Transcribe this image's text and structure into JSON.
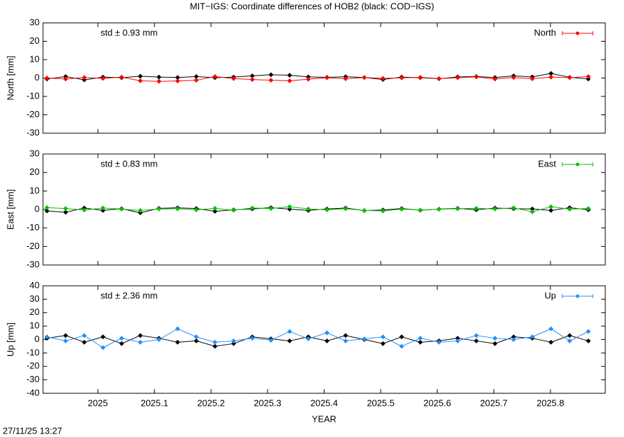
{
  "title": "MIT−IGS: Coordinate differences of HOB2 (black: COD−IGS)",
  "timestamp": "27/11/25 13:27",
  "chart_data": [
    {
      "type": "scatter",
      "ylabel": "North [mm]",
      "annotation": "std ± 0.93 mm",
      "annotation_color": "#ff0000",
      "xlim": [
        2024.903,
        2025.897
      ],
      "xticks": [
        2025,
        2025.1,
        2025.2,
        2025.3,
        2025.4,
        2025.5,
        2025.6,
        2025.7,
        2025.8
      ],
      "ylim": [
        -30,
        30
      ],
      "yticks": [
        -30,
        -20,
        -10,
        0,
        10,
        20,
        30
      ],
      "legend": "top-right",
      "x": [
        2024.91,
        2024.943,
        2024.976,
        2025.009,
        2025.042,
        2025.075,
        2025.108,
        2025.141,
        2025.174,
        2025.207,
        2025.24,
        2025.273,
        2025.306,
        2025.339,
        2025.372,
        2025.405,
        2025.438,
        2025.471,
        2025.504,
        2025.537,
        2025.57,
        2025.603,
        2025.636,
        2025.669,
        2025.702,
        2025.735,
        2025.768,
        2025.801,
        2025.834,
        2025.867
      ],
      "series": [
        {
          "color": "#000000",
          "values": [
            -0.5,
            0.8,
            -1,
            0.5,
            0.2,
            1,
            0.5,
            0.3,
            0.8,
            0.2,
            0.5,
            1.2,
            1.8,
            1.5,
            0.6,
            0.4,
            0.7,
            0.3,
            -0.8,
            0.5,
            0.2,
            -0.4,
            0.6,
            0.8,
            0.3,
            1.2,
            0.6,
            2.5,
            0.4,
            -0.5
          ]
        },
        {
          "name": "North",
          "color": "#ff0000",
          "values": [
            0,
            -0.5,
            0.3,
            -0.2,
            0.5,
            -1.5,
            -1.8,
            -1.6,
            -1.2,
            0.8,
            -0.3,
            -0.8,
            -1.2,
            -1.5,
            -0.6,
            0.2,
            -0.4,
            0.3,
            -0.2,
            0.1,
            0.4,
            -0.3,
            0.2,
            0.6,
            -0.5,
            0.3,
            -0.4,
            0.5,
            0.2,
            0.8
          ]
        }
      ]
    },
    {
      "type": "scatter",
      "ylabel": "East [mm]",
      "annotation": "std ± 0.83 mm",
      "annotation_color": "#00c000",
      "xlim": [
        2024.903,
        2025.897
      ],
      "xticks": [
        2025,
        2025.1,
        2025.2,
        2025.3,
        2025.4,
        2025.5,
        2025.6,
        2025.7,
        2025.8
      ],
      "ylim": [
        -30,
        30
      ],
      "yticks": [
        -30,
        -20,
        -10,
        0,
        10,
        20,
        30
      ],
      "legend": "top-right",
      "x": [
        2024.91,
        2024.943,
        2024.976,
        2025.009,
        2025.042,
        2025.075,
        2025.108,
        2025.141,
        2025.174,
        2025.207,
        2025.24,
        2025.273,
        2025.306,
        2025.339,
        2025.372,
        2025.405,
        2025.438,
        2025.471,
        2025.504,
        2025.537,
        2025.57,
        2025.603,
        2025.636,
        2025.669,
        2025.702,
        2025.735,
        2025.768,
        2025.801,
        2025.834,
        2025.867
      ],
      "series": [
        {
          "color": "#000000",
          "values": [
            -0.8,
            -1.5,
            0.8,
            -0.5,
            0.4,
            -1.8,
            0.6,
            0.9,
            0.5,
            -1,
            -0.2,
            0.3,
            1,
            0.2,
            -0.5,
            0.3,
            0.8,
            -0.6,
            -0.3,
            0.5,
            -0.4,
            0.2,
            0.6,
            -0.2,
            0.8,
            0.4,
            0.3,
            -0.5,
            1,
            -0.2
          ]
        },
        {
          "name": "East",
          "color": "#00c000",
          "values": [
            1,
            0.5,
            -0.3,
            0.8,
            0.2,
            -0.5,
            0.3,
            0.4,
            -0.2,
            0.6,
            -0.4,
            0.8,
            0.5,
            1.5,
            0.3,
            -0.2,
            0.4,
            -0.5,
            -0.8,
            0.2,
            -0.3,
            0.1,
            0.4,
            0.6,
            0.3,
            0.9,
            -1.2,
            1.5,
            0.2,
            0.5
          ]
        }
      ]
    },
    {
      "type": "scatter",
      "ylabel": "Up [mm]",
      "xlabel": "YEAR",
      "annotation": "std ± 2.36 mm",
      "annotation_color": "#1e90ff",
      "xlim": [
        2024.903,
        2025.897
      ],
      "xticks": [
        2025,
        2025.1,
        2025.2,
        2025.3,
        2025.4,
        2025.5,
        2025.6,
        2025.7,
        2025.8
      ],
      "ylim": [
        -40,
        40
      ],
      "yticks": [
        -40,
        -30,
        -20,
        -10,
        0,
        10,
        20,
        30,
        40
      ],
      "legend": "top-right",
      "x": [
        2024.91,
        2024.943,
        2024.976,
        2025.009,
        2025.042,
        2025.075,
        2025.108,
        2025.141,
        2025.174,
        2025.207,
        2025.24,
        2025.273,
        2025.306,
        2025.339,
        2025.372,
        2025.405,
        2025.438,
        2025.471,
        2025.504,
        2025.537,
        2025.57,
        2025.603,
        2025.636,
        2025.669,
        2025.702,
        2025.735,
        2025.768,
        2025.801,
        2025.834,
        2025.867
      ],
      "series": [
        {
          "color": "#000000",
          "values": [
            1,
            3,
            -2,
            2,
            -3,
            3,
            1,
            -2,
            -1,
            -5,
            -3,
            2,
            0.5,
            -1,
            2,
            -1,
            3,
            0,
            -3,
            2,
            -2,
            -1,
            1,
            -1,
            -3,
            2,
            1,
            -2,
            3,
            -1
          ]
        },
        {
          "name": "Up",
          "color": "#1e90ff",
          "values": [
            2,
            -1,
            3,
            -6,
            1,
            -2,
            0,
            8,
            2,
            -2,
            -1,
            1,
            -0.5,
            6,
            0.5,
            5,
            -1,
            0.5,
            2,
            -5,
            1,
            -2,
            -1,
            3,
            1,
            0,
            2,
            8,
            -1,
            6
          ]
        }
      ]
    }
  ]
}
